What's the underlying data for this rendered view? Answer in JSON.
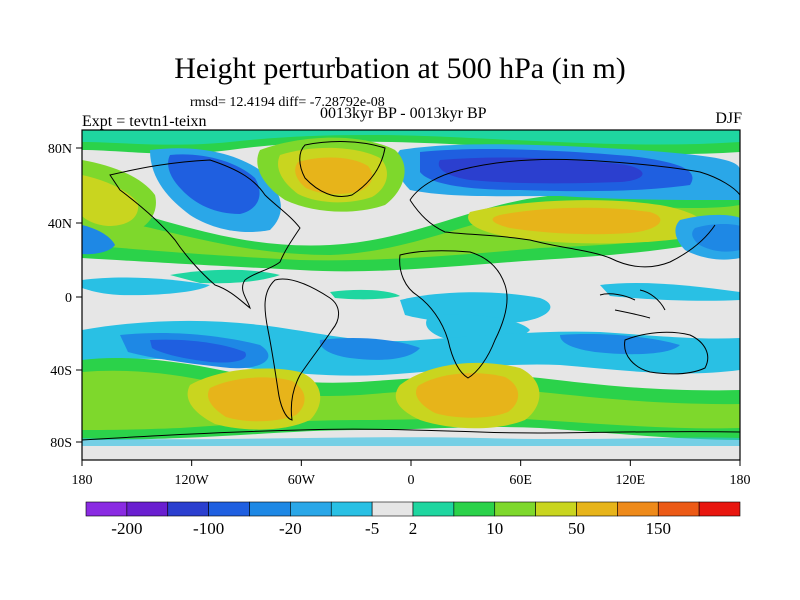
{
  "title": "Height perturbation at 500 hPa (in m)",
  "stats": "rmsd= 12.4194 diff= -7.28792e-08",
  "experiment": "Expt = tevtn1-teixn",
  "period": "0013kyr BP - 0013kyr BP",
  "season": "DJF",
  "map": {
    "lat_ticks": [
      "80N",
      "40N",
      "0",
      "40S",
      "80S"
    ],
    "lon_ticks": [
      "180",
      "120W",
      "60W",
      "0",
      "60E",
      "120E",
      "180"
    ]
  },
  "colorbar": {
    "labels": [
      "-200",
      "-100",
      "-20",
      "-5",
      "2",
      "10",
      "50",
      "150"
    ],
    "colors": [
      "#8a2be2",
      "#6a1fd0",
      "#2b3fcf",
      "#1f5fe0",
      "#1e88e5",
      "#2aa7e8",
      "#29c0e4",
      "#e6e6e6",
      "#1fd6a0",
      "#2bd24a",
      "#7ed82c",
      "#c9d51f",
      "#e7b41a",
      "#ee8a1a",
      "#ec5a16",
      "#e8160f"
    ]
  }
}
